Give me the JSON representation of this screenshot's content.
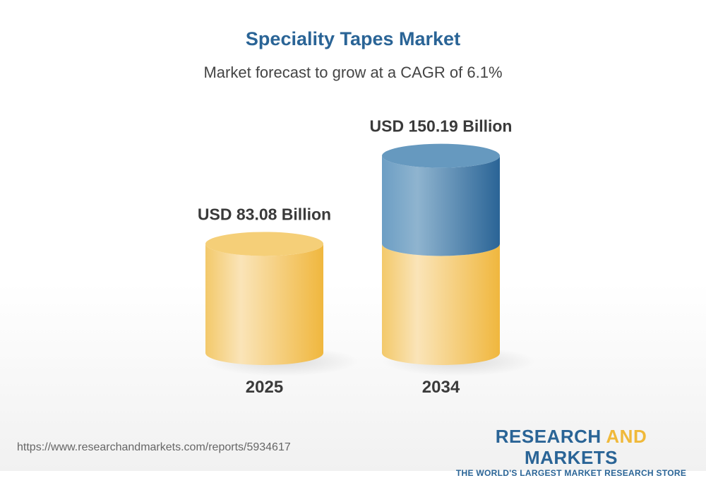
{
  "chart_data": {
    "type": "bar",
    "style": "3d-cylinder",
    "title": "Speciality Tapes Market",
    "subtitle": "Market forecast to grow at a CAGR of 6.1%",
    "categories": [
      "2025",
      "2034"
    ],
    "values": [
      83.08,
      150.19
    ],
    "data_labels": [
      "USD 83.08 Billion",
      "USD 150.19 Billion"
    ],
    "unit": "USD Billion",
    "colors": {
      "base": "#f2c25a",
      "growth": "#2a6496"
    },
    "grid": false
  },
  "footer": {
    "url": "https://www.researchandmarkets.com/reports/5934617",
    "logo_word1": "RESEARCH ",
    "logo_word2": "AND",
    "logo_word3": " MARKETS",
    "logo_tagline": "THE WORLD'S LARGEST MARKET RESEARCH STORE"
  }
}
